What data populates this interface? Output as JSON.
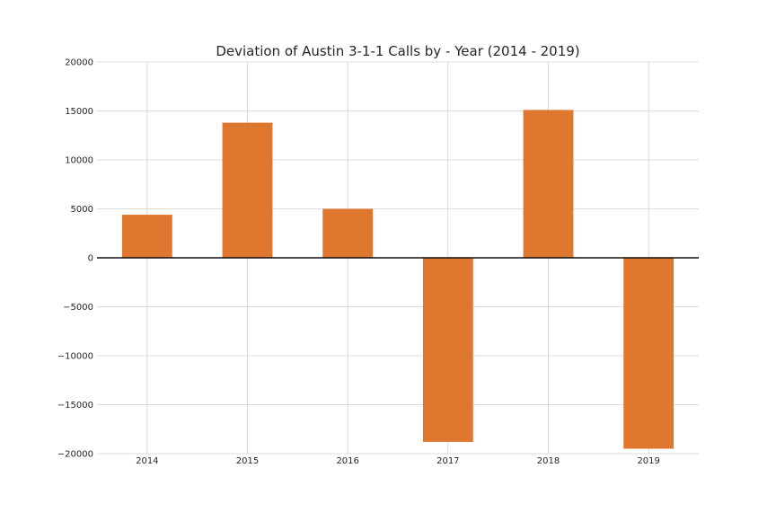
{
  "chart_data": {
    "type": "bar",
    "title": "Deviation of Austin 3-1-1 Calls by - Year (2014 - 2019)",
    "xlabel": "",
    "ylabel": "",
    "categories": [
      "2014",
      "2015",
      "2016",
      "2017",
      "2018",
      "2019"
    ],
    "values": [
      4400,
      13800,
      5000,
      -18800,
      15100,
      -19500
    ],
    "ylim": [
      -20000,
      20000
    ],
    "yticks": [
      20000,
      15000,
      10000,
      5000,
      0,
      -5000,
      -10000,
      -15000,
      -20000
    ],
    "ytick_labels": [
      "20000",
      "15000",
      "10000",
      "5000",
      "0",
      "−5000",
      "−10000",
      "−15000",
      "−20000"
    ],
    "grid": true,
    "zero_line": true,
    "bar_color": "#dd7123",
    "grid_color": "#d0d0d0",
    "text_color": "#262626"
  }
}
